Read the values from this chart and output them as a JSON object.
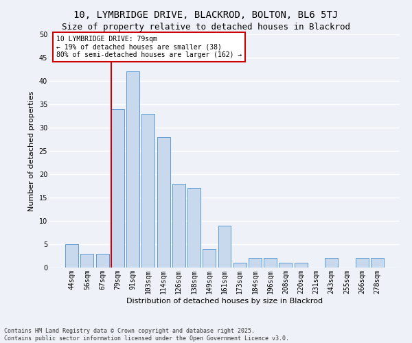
{
  "title1": "10, LYMBRIDGE DRIVE, BLACKROD, BOLTON, BL6 5TJ",
  "title2": "Size of property relative to detached houses in Blackrod",
  "xlabel": "Distribution of detached houses by size in Blackrod",
  "ylabel": "Number of detached properties",
  "categories": [
    "44sqm",
    "56sqm",
    "67sqm",
    "79sqm",
    "91sqm",
    "103sqm",
    "114sqm",
    "126sqm",
    "138sqm",
    "149sqm",
    "161sqm",
    "173sqm",
    "184sqm",
    "196sqm",
    "208sqm",
    "220sqm",
    "231sqm",
    "243sqm",
    "255sqm",
    "266sqm",
    "278sqm"
  ],
  "values": [
    5,
    3,
    3,
    34,
    42,
    33,
    28,
    18,
    17,
    4,
    9,
    1,
    2,
    2,
    1,
    1,
    0,
    2,
    0,
    2,
    2
  ],
  "bar_color": "#c9d9ed",
  "bar_edge_color": "#5b9bd5",
  "red_line_index": 3,
  "annotation_line1": "10 LYMBRIDGE DRIVE: 79sqm",
  "annotation_line2": "← 19% of detached houses are smaller (38)",
  "annotation_line3": "80% of semi-detached houses are larger (162) →",
  "annotation_box_color": "#ffffff",
  "annotation_box_edge": "#cc0000",
  "red_line_color": "#cc0000",
  "footer": "Contains HM Land Registry data © Crown copyright and database right 2025.\nContains public sector information licensed under the Open Government Licence v3.0.",
  "ylim": [
    0,
    50
  ],
  "yticks": [
    0,
    5,
    10,
    15,
    20,
    25,
    30,
    35,
    40,
    45,
    50
  ],
  "background_color": "#eef2f8",
  "grid_color": "#ffffff",
  "title1_fontsize": 10,
  "title2_fontsize": 9,
  "xlabel_fontsize": 8,
  "ylabel_fontsize": 8,
  "tick_fontsize": 7,
  "footer_fontsize": 6,
  "annot_fontsize": 7
}
